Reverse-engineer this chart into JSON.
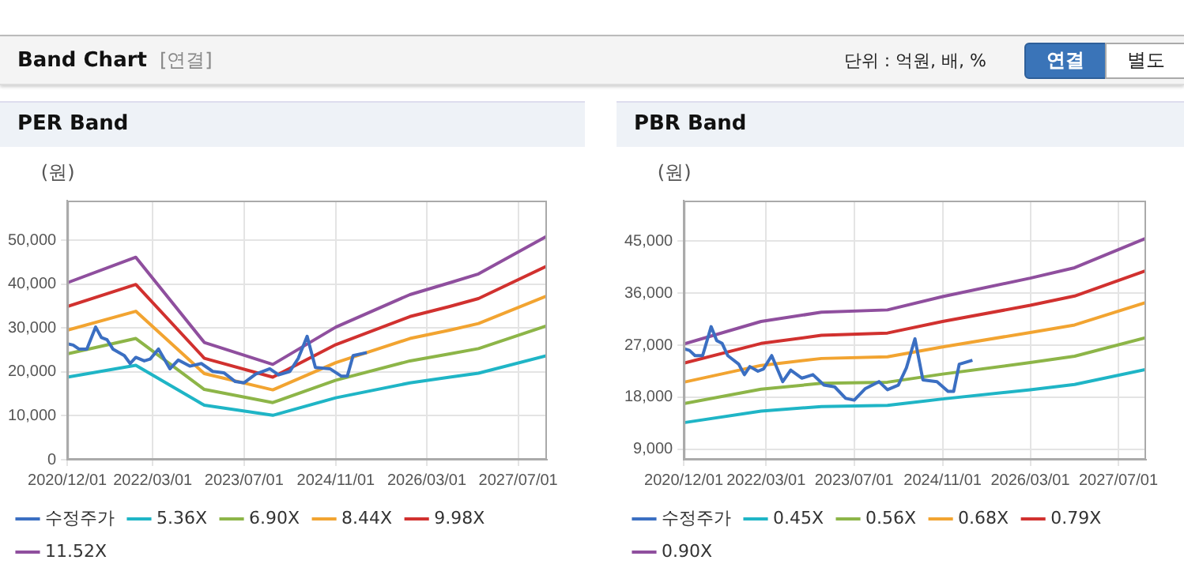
{
  "chart_data": [
    {
      "type": "other",
      "title": "Band Chart",
      "subtitle": "[연결]",
      "annotations": [
        "단위 : 억원, 배, %",
        "연결",
        "별도"
      ]
    },
    {
      "type": "line",
      "title": "PER Band",
      "ylabel": "(원)",
      "x": [
        "2020-12-01",
        "2021-12-01",
        "2022-12-01",
        "2023-12-01",
        "2024-11-01",
        "2025-12-01",
        "2026-07-01",
        "2026-12-01",
        "2027-12-01"
      ],
      "xlim": [
        "2020-12-01",
        "2027-12-01"
      ],
      "ylim": [
        0,
        59000
      ],
      "xticks": [
        {
          "value": "2020-12-01",
          "label": "2020/12/01"
        },
        {
          "value": "2022-03-01",
          "label": "2022/03/01"
        },
        {
          "value": "2023-07-01",
          "label": "2023/07/01"
        },
        {
          "value": "2024-11-01",
          "label": "2024/11/01"
        },
        {
          "value": "2026-03-01",
          "label": "2026/03/01"
        },
        {
          "value": "2027-07-01",
          "label": "2027/07/01"
        }
      ],
      "yticks": [
        0,
        {
          "value": 10000,
          "label": "10,000"
        },
        {
          "value": 20000,
          "label": "20,000"
        },
        {
          "value": 30000,
          "label": "30,000"
        },
        {
          "value": 40000,
          "label": "40,000"
        },
        {
          "value": 50000,
          "label": "50,000"
        }
      ],
      "grid": true,
      "legend": "bottom",
      "series": [
        {
          "name": "수정주가",
          "color": "#3b6fc2",
          "x": [
            "2020-12-01",
            "2021-01-01",
            "2021-02-01",
            "2021-03-15",
            "2021-05-01",
            "2021-06-01",
            "2021-07-01",
            "2021-08-01",
            "2021-10-01",
            "2021-11-01",
            "2021-12-01",
            "2022-01-15",
            "2022-02-15",
            "2022-04-01",
            "2022-06-01",
            "2022-07-15",
            "2022-09-15",
            "2022-11-15",
            "2023-01-15",
            "2023-03-15",
            "2023-05-15",
            "2023-07-01",
            "2023-09-01",
            "2023-11-15",
            "2024-01-01",
            "2024-03-01",
            "2024-04-15",
            "2024-06-01",
            "2024-07-15",
            "2024-10-01",
            "2024-12-01",
            "2025-01-01",
            "2025-02-01",
            "2025-04-15"
          ],
          "values": [
            26400,
            26100,
            25200,
            25200,
            30200,
            27800,
            27300,
            25200,
            23700,
            21900,
            23300,
            22500,
            22900,
            25200,
            20700,
            22700,
            21300,
            21900,
            20100,
            19800,
            17800,
            17500,
            19500,
            20700,
            19300,
            20100,
            23100,
            28100,
            21000,
            20700,
            19000,
            19000,
            23700,
            24400
          ]
        },
        {
          "name": "5.36X",
          "color": "#1fb5c6",
          "values": [
            18800,
            21500,
            12400,
            10100,
            14100,
            17500,
            18800,
            19700,
            23700
          ]
        },
        {
          "name": "6.90X",
          "color": "#8db548",
          "values": [
            24100,
            27600,
            16000,
            13000,
            18100,
            22500,
            24100,
            25300,
            30500
          ]
        },
        {
          "name": "8.44X",
          "color": "#f2a431",
          "values": [
            29500,
            33800,
            19600,
            15900,
            22100,
            27600,
            29500,
            31000,
            37300
          ]
        },
        {
          "name": "9.98X",
          "color": "#d1312f",
          "values": [
            34900,
            39900,
            23100,
            18800,
            26200,
            32600,
            34900,
            36700,
            44100
          ]
        },
        {
          "name": "11.52X",
          "color": "#8f4f9e",
          "values": [
            40300,
            46100,
            26700,
            21700,
            30200,
            37600,
            40300,
            42300,
            50900
          ]
        }
      ]
    },
    {
      "type": "line",
      "title": "PBR Band",
      "ylabel": "(원)",
      "x": [
        "2020-12-01",
        "2022-02-01",
        "2023-01-01",
        "2024-01-01",
        "2024-11-01",
        "2026-03-01",
        "2026-11-01",
        "2027-12-01"
      ],
      "xlim": [
        "2020-12-01",
        "2027-12-01"
      ],
      "ylim": [
        7200,
        52000
      ],
      "xticks": [
        {
          "value": "2020-12-01",
          "label": "2020/12/01"
        },
        {
          "value": "2022-03-01",
          "label": "2022/03/01"
        },
        {
          "value": "2023-07-01",
          "label": "2023/07/01"
        },
        {
          "value": "2024-11-01",
          "label": "2024/11/01"
        },
        {
          "value": "2026-03-01",
          "label": "2026/03/01"
        },
        {
          "value": "2027-07-01",
          "label": "2027/07/01"
        }
      ],
      "yticks": [
        {
          "value": 9000,
          "label": "9,000"
        },
        {
          "value": 18000,
          "label": "18,000"
        },
        {
          "value": 27000,
          "label": "27,000"
        },
        {
          "value": 36000,
          "label": "36,000"
        },
        {
          "value": 45000,
          "label": "45,000"
        }
      ],
      "grid": true,
      "legend": "bottom",
      "series": [
        {
          "name": "수정주가",
          "color": "#3b6fc2",
          "x": [
            "2020-12-01",
            "2021-01-01",
            "2021-02-01",
            "2021-03-15",
            "2021-05-01",
            "2021-06-01",
            "2021-07-01",
            "2021-08-01",
            "2021-10-01",
            "2021-11-01",
            "2021-12-01",
            "2022-01-15",
            "2022-02-15",
            "2022-04-01",
            "2022-06-01",
            "2022-07-15",
            "2022-09-15",
            "2022-11-15",
            "2023-01-15",
            "2023-03-15",
            "2023-05-15",
            "2023-07-01",
            "2023-09-01",
            "2023-11-15",
            "2024-01-01",
            "2024-03-01",
            "2024-04-15",
            "2024-06-01",
            "2024-07-15",
            "2024-10-01",
            "2024-12-01",
            "2025-01-01",
            "2025-02-01",
            "2025-04-15"
          ],
          "values": [
            26400,
            26100,
            25200,
            25200,
            30200,
            27800,
            27300,
            25200,
            23700,
            21900,
            23300,
            22500,
            22900,
            25200,
            20700,
            22700,
            21300,
            21900,
            20100,
            19800,
            17800,
            17500,
            19500,
            20700,
            19300,
            20100,
            23100,
            28100,
            21000,
            20700,
            19000,
            19000,
            23700,
            24400
          ]
        },
        {
          "name": "0.45X",
          "color": "#1fb5c6",
          "values": [
            13600,
            15600,
            16400,
            16600,
            17700,
            19300,
            20200,
            22800
          ]
        },
        {
          "name": "0.56X",
          "color": "#8db548",
          "values": [
            16900,
            19400,
            20400,
            20600,
            22000,
            24000,
            25100,
            28300
          ]
        },
        {
          "name": "0.68X",
          "color": "#f2a431",
          "values": [
            20600,
            23500,
            24700,
            25000,
            26700,
            29200,
            30500,
            34400
          ]
        },
        {
          "name": "0.79X",
          "color": "#d1312f",
          "values": [
            23900,
            27300,
            28700,
            29100,
            31100,
            33900,
            35500,
            39900
          ]
        },
        {
          "name": "0.90X",
          "color": "#8f4f9e",
          "values": [
            27200,
            31100,
            32700,
            33100,
            35400,
            38600,
            40400,
            45500
          ]
        }
      ]
    }
  ]
}
